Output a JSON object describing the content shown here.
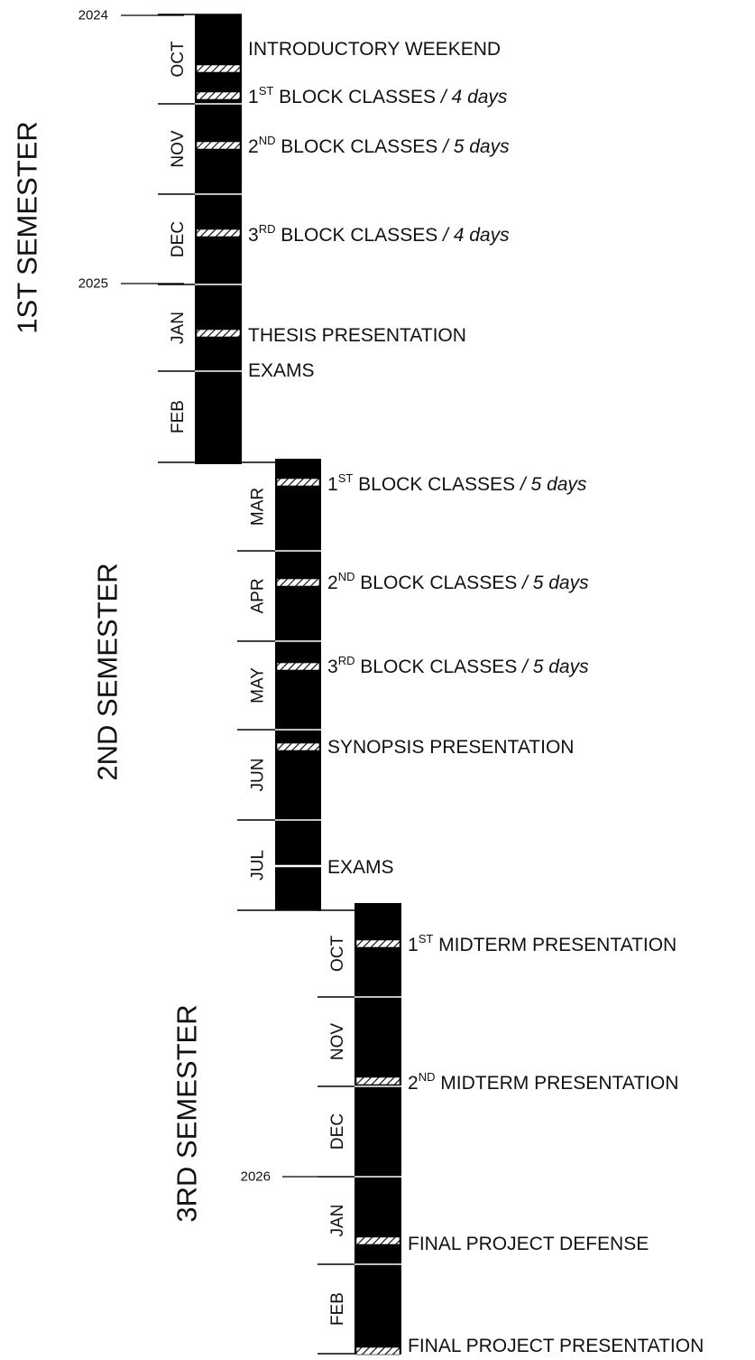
{
  "semesters": [
    {
      "label": "1ST SEMESTER"
    },
    {
      "label": "2ND SEMESTER"
    },
    {
      "label": "3RD SEMESTER"
    }
  ],
  "years": [
    "2024",
    "2025",
    "2026"
  ],
  "months": [
    {
      "label": "OCT",
      "semester": 0
    },
    {
      "label": "NOV",
      "semester": 0
    },
    {
      "label": "DEC",
      "semester": 0
    },
    {
      "label": "JAN",
      "semester": 0
    },
    {
      "label": "FEB",
      "semester": 0
    },
    {
      "label": "MAR",
      "semester": 1
    },
    {
      "label": "APR",
      "semester": 1
    },
    {
      "label": "MAY",
      "semester": 1
    },
    {
      "label": "JUN",
      "semester": 1
    },
    {
      "label": "JUL",
      "semester": 1
    },
    {
      "label": "OCT",
      "semester": 2
    },
    {
      "label": "NOV",
      "semester": 2
    },
    {
      "label": "DEC",
      "semester": 2
    },
    {
      "label": "JAN",
      "semester": 2
    },
    {
      "label": "FEB",
      "semester": 2
    }
  ],
  "events": [
    {
      "pre": "INTRODUCTORY WEEKEND",
      "sup": "",
      "main": "",
      "italic": ""
    },
    {
      "pre": "1",
      "sup": "ST",
      "main": " BLOCK CLASSES ",
      "italic": "/ 4 days"
    },
    {
      "pre": "2",
      "sup": "ND",
      "main": " BLOCK CLASSES ",
      "italic": "/ 5 days"
    },
    {
      "pre": "3",
      "sup": "RD",
      "main": " BLOCK CLASSES ",
      "italic": "/ 4 days"
    },
    {
      "pre": "THESIS PRESENTATION",
      "sup": "",
      "main": "",
      "italic": ""
    },
    {
      "pre": "EXAMS",
      "sup": "",
      "main": "",
      "italic": ""
    },
    {
      "pre": "1",
      "sup": "ST",
      "main": " BLOCK CLASSES ",
      "italic": "/ 5 days"
    },
    {
      "pre": "2",
      "sup": "ND",
      "main": " BLOCK CLASSES ",
      "italic": "/ 5 days"
    },
    {
      "pre": "3",
      "sup": "RD",
      "main": " BLOCK CLASSES ",
      "italic": "/ 5 days"
    },
    {
      "pre": "SYNOPSIS PRESENTATION",
      "sup": "",
      "main": "",
      "italic": ""
    },
    {
      "pre": "EXAMS",
      "sup": "",
      "main": "",
      "italic": ""
    },
    {
      "pre": "1",
      "sup": "ST",
      "main": " MIDTERM PRESENTATION",
      "italic": ""
    },
    {
      "pre": "2",
      "sup": "ND",
      "main": " MIDTERM PRESENTATION",
      "italic": ""
    },
    {
      "pre": "FINAL PROJECT DEFENSE",
      "sup": "",
      "main": "",
      "italic": ""
    },
    {
      "pre": "FINAL PROJECT PRESENTATION",
      "sup": "",
      "main": "",
      "italic": ""
    }
  ]
}
